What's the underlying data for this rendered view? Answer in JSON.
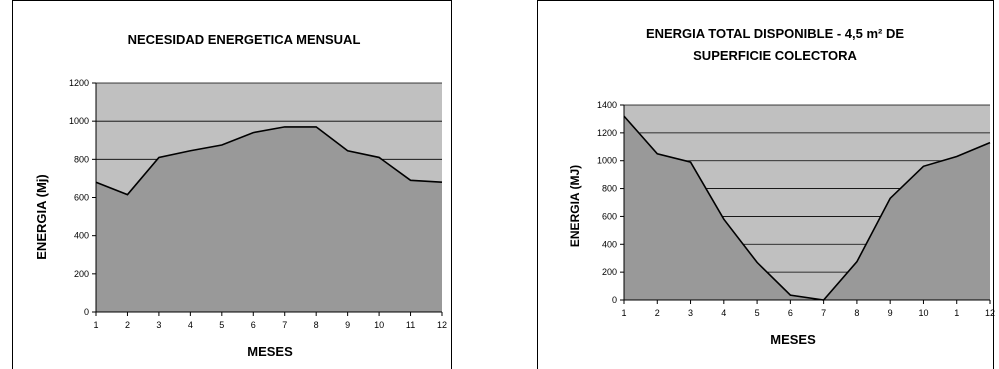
{
  "chart_data": [
    {
      "type": "area",
      "title": "NECESIDAD ENERGETICA MENSUAL",
      "xlabel": "MESES",
      "ylabel": "ENERGIA (Mj)",
      "categories": [
        "1",
        "2",
        "3",
        "4",
        "5",
        "6",
        "7",
        "8",
        "9",
        "10",
        "11",
        "12"
      ],
      "values": [
        680,
        615,
        810,
        845,
        875,
        940,
        970,
        970,
        845,
        810,
        690,
        680
      ],
      "ylim": [
        0,
        1200
      ],
      "yticks": [
        0,
        200,
        400,
        600,
        800,
        1000,
        1200
      ],
      "grid": true,
      "legend": "none",
      "colors": {
        "area": "#999999",
        "plot_bg": "#c0c0c0",
        "line": "#000000"
      }
    },
    {
      "type": "area",
      "title_line1": "ENERGIA TOTAL DISPONIBLE - 4,5 m² DE",
      "title_line2": "SUPERFICIE COLECTORA",
      "xlabel": "MESES",
      "ylabel": "ENERGIA (MJ)",
      "categories": [
        "1",
        "2",
        "3",
        "4",
        "5",
        "6",
        "7",
        "8",
        "9",
        "10",
        "1",
        "12"
      ],
      "values": [
        1320,
        1050,
        990,
        580,
        270,
        35,
        0,
        275,
        730,
        960,
        1030,
        1130
      ],
      "ylim": [
        0,
        1400
      ],
      "yticks": [
        0,
        200,
        400,
        600,
        800,
        1000,
        1200,
        1400
      ],
      "grid": true,
      "legend": "none",
      "colors": {
        "area": "#999999",
        "plot_bg": "#c0c0c0",
        "line": "#000000"
      }
    }
  ]
}
